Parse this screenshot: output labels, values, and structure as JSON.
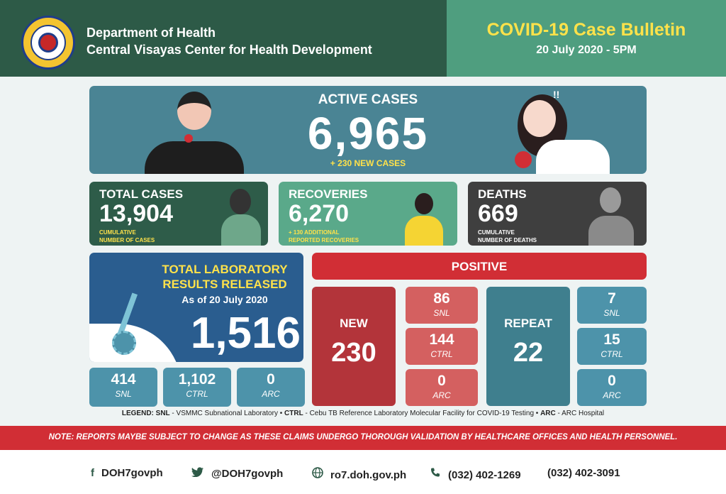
{
  "header": {
    "org_line1": "Department of Health",
    "org_line2": "Central Visayas Center for Health Development",
    "bulletin_title": "COVID-19 Case Bulletin",
    "bulletin_date": "20 July 2020 - 5PM",
    "seal_text": "REPUBLIC OF THE PHILIPPINES DEPARTMENT OF HEALTH"
  },
  "active": {
    "label": "ACTIVE CASES",
    "value": "6,965",
    "new_cases": "+ 230 NEW CASES",
    "exclaim": "!!"
  },
  "total": {
    "label": "TOTAL CASES",
    "value": "13,904",
    "note1": "CUMULATIVE",
    "note2": "NUMBER OF CASES"
  },
  "recoveries": {
    "label": "RECOVERIES",
    "value": "6,270",
    "note1": "+ 130 ADDITIONAL",
    "note2": "REPORTED RECOVERIES"
  },
  "deaths": {
    "label": "DEATHS",
    "value": "669",
    "note1": "CUMULATIVE",
    "note2": "NUMBER OF DEATHS"
  },
  "lab": {
    "title1": "TOTAL LABORATORY",
    "title2": "RESULTS RELEASED",
    "asof": "As of 20 July 2020",
    "value": "1,516",
    "tiles": [
      {
        "value": "414",
        "label": "SNL"
      },
      {
        "value": "1,102",
        "label": "CTRL"
      },
      {
        "value": "0",
        "label": "ARC"
      }
    ]
  },
  "positive": {
    "label": "POSITIVE",
    "new_label": "NEW",
    "new_value": "230",
    "new_tiles": [
      {
        "value": "86",
        "label": "SNL"
      },
      {
        "value": "144",
        "label": "CTRL"
      },
      {
        "value": "0",
        "label": "ARC"
      }
    ],
    "repeat_label": "REPEAT",
    "repeat_value": "22",
    "repeat_tiles": [
      {
        "value": "7",
        "label": "SNL"
      },
      {
        "value": "15",
        "label": "CTRL"
      },
      {
        "value": "0",
        "label": "ARC"
      }
    ]
  },
  "legend": {
    "prefix": "LEGEND:",
    "snl_key": "SNL",
    "snl_text": " - VSMMC Subnational Laboratory • ",
    "ctrl_key": "CTRL",
    "ctrl_text": " - Cebu TB Reference Laboratory Molecular Facility for COVID-19 Testing • ",
    "arc_key": "ARC",
    "arc_text": " - ARC Hospital"
  },
  "note": "NOTE:  REPORTS MAYBE SUBJECT TO CHANGE AS THESE CLAIMS UNDERGO THOROUGH VALIDATION BY HEALTHCARE OFFICES AND HEALTH PERSONNEL.",
  "footer": {
    "facebook": "DOH7govph",
    "twitter": "@DOH7govph",
    "website": "ro7.doh.gov.ph",
    "phone1": "(032) 402-1269",
    "phone2": "(032) 402-3091"
  },
  "icons": {
    "facebook": "facebook-icon",
    "twitter": "twitter-icon",
    "globe": "globe-icon",
    "phone": "phone-icon"
  },
  "colors": {
    "header_green": "#2d5a47",
    "accent_yellow": "#ffe24a",
    "positive_red": "#d12e35",
    "teal": "#4a8494"
  }
}
